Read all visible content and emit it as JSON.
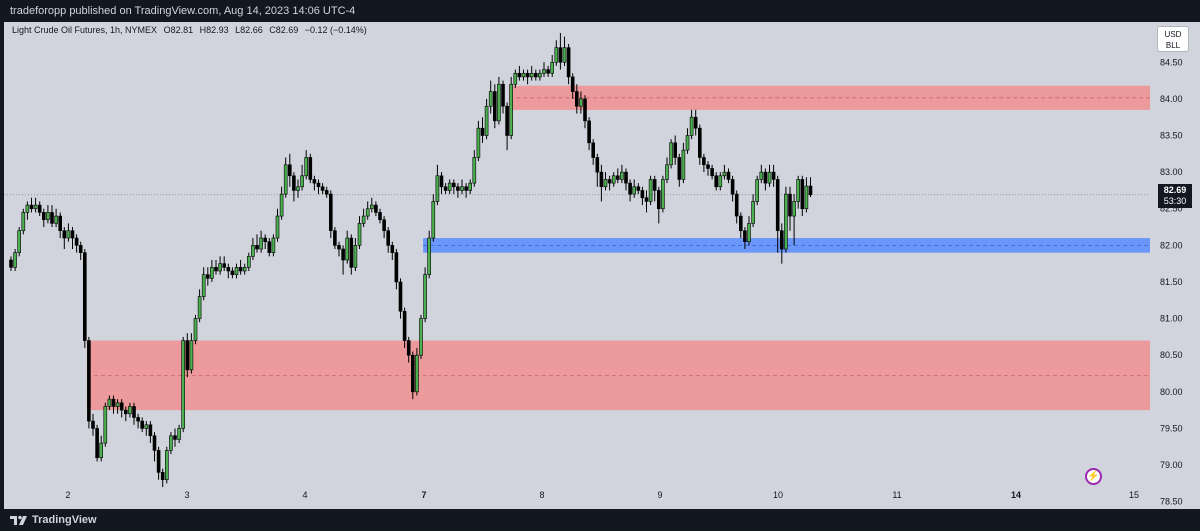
{
  "header": {
    "publisher_line": "tradeforopp published on TradingView.com, Aug 14, 2023 14:06 UTC-4"
  },
  "legend": {
    "symbol": "Light Crude Oil Futures, 1h, NYMEX",
    "open": "O82.81",
    "high": "H82.93",
    "low": "L82.66",
    "close": "C82.69",
    "change": "−0.12 (−0.14%)"
  },
  "currency": {
    "line1": "USD",
    "line2": "BLL"
  },
  "last_price": {
    "price": "82.69",
    "countdown": "53:30"
  },
  "footer": {
    "brand": "TradingView"
  },
  "colors": {
    "background": "#d1d4dc",
    "up_candle": "#4caf50",
    "down_candle": "#000000",
    "supply_zone": "#f28b8b",
    "demand_zone": "#5b8cff",
    "chrome": "#131722"
  },
  "icons": [
    "tradingview-logo-icon",
    "lightning-bolt-icon"
  ],
  "chart_data": {
    "type": "candlestick",
    "y_ticks": [
      "84.50",
      "84.00",
      "83.50",
      "83.00",
      "82.50",
      "82.00",
      "81.50",
      "81.00",
      "80.50",
      "80.00",
      "79.50",
      "79.00",
      "78.50"
    ],
    "ylim": [
      78.4,
      85.05
    ],
    "x_ticks": [
      {
        "label": "2",
        "bold": false
      },
      {
        "label": "3",
        "bold": false
      },
      {
        "label": "4",
        "bold": false
      },
      {
        "label": "7",
        "bold": true
      },
      {
        "label": "8",
        "bold": false
      },
      {
        "label": "9",
        "bold": false
      },
      {
        "label": "10",
        "bold": false
      },
      {
        "label": "11",
        "bold": false
      },
      {
        "label": "14",
        "bold": true
      },
      {
        "label": "15",
        "bold": false
      }
    ],
    "zones": [
      {
        "name": "supply-zone-upper",
        "from_candle": 122,
        "y_low": 83.85,
        "y_high": 84.18,
        "color": "#f28b8b"
      },
      {
        "name": "demand-zone",
        "from_candle": 101,
        "y_low": 81.9,
        "y_high": 82.1,
        "color": "#5b8cff"
      },
      {
        "name": "supply-zone-lower",
        "from_candle": 19,
        "y_low": 79.75,
        "y_high": 80.7,
        "color": "#f28b8b"
      }
    ],
    "candles": [
      [
        81.8,
        81.7,
        81.85,
        81.65
      ],
      [
        81.7,
        81.9,
        81.95,
        81.65
      ],
      [
        81.9,
        82.2,
        82.25,
        81.85
      ],
      [
        82.2,
        82.45,
        82.5,
        82.15
      ],
      [
        82.45,
        82.55,
        82.6,
        82.35
      ],
      [
        82.55,
        82.5,
        82.65,
        82.45
      ],
      [
        82.5,
        82.55,
        82.65,
        82.45
      ],
      [
        82.55,
        82.45,
        82.6,
        82.4
      ],
      [
        82.45,
        82.35,
        82.5,
        82.25
      ],
      [
        82.35,
        82.45,
        82.55,
        82.3
      ],
      [
        82.45,
        82.3,
        82.55,
        82.25
      ],
      [
        82.3,
        82.4,
        82.5,
        82.25
      ],
      [
        82.4,
        82.2,
        82.45,
        82.1
      ],
      [
        82.2,
        82.1,
        82.25,
        81.95
      ],
      [
        82.1,
        82.2,
        82.3,
        82.05
      ],
      [
        82.2,
        82.1,
        82.25,
        81.95
      ],
      [
        82.1,
        82.0,
        82.15,
        81.9
      ],
      [
        82.0,
        81.9,
        82.05,
        81.8
      ],
      [
        81.9,
        80.7,
        81.95,
        80.6
      ],
      [
        80.7,
        79.6,
        80.75,
        79.5
      ],
      [
        79.6,
        79.5,
        79.7,
        79.4
      ],
      [
        79.5,
        79.1,
        79.55,
        79.05
      ],
      [
        79.1,
        79.3,
        79.4,
        79.05
      ],
      [
        79.3,
        79.8,
        79.85,
        79.25
      ],
      [
        79.8,
        79.9,
        79.95,
        79.75
      ],
      [
        79.9,
        79.8,
        79.95,
        79.7
      ],
      [
        79.8,
        79.85,
        79.9,
        79.7
      ],
      [
        79.85,
        79.75,
        79.9,
        79.65
      ],
      [
        79.75,
        79.7,
        79.8,
        79.6
      ],
      [
        79.7,
        79.8,
        79.85,
        79.65
      ],
      [
        79.8,
        79.65,
        79.85,
        79.55
      ],
      [
        79.65,
        79.6,
        79.7,
        79.5
      ],
      [
        79.6,
        79.5,
        79.65,
        79.45
      ],
      [
        79.5,
        79.55,
        79.6,
        79.4
      ],
      [
        79.55,
        79.4,
        79.6,
        79.3
      ],
      [
        79.4,
        79.2,
        79.45,
        79.05
      ],
      [
        79.2,
        78.9,
        79.25,
        78.8
      ],
      [
        78.9,
        78.8,
        78.95,
        78.7
      ],
      [
        78.8,
        79.2,
        79.25,
        78.75
      ],
      [
        79.2,
        79.4,
        79.45,
        79.15
      ],
      [
        79.4,
        79.35,
        79.5,
        79.25
      ],
      [
        79.35,
        79.5,
        79.55,
        79.3
      ],
      [
        79.5,
        80.7,
        80.75,
        79.45
      ],
      [
        80.7,
        80.3,
        80.8,
        80.2
      ],
      [
        80.3,
        80.7,
        80.8,
        80.25
      ],
      [
        80.7,
        81.0,
        81.05,
        80.65
      ],
      [
        81.0,
        81.3,
        81.4,
        80.95
      ],
      [
        81.3,
        81.6,
        81.7,
        81.25
      ],
      [
        81.6,
        81.55,
        81.7,
        81.45
      ],
      [
        81.55,
        81.7,
        81.8,
        81.5
      ],
      [
        81.7,
        81.65,
        81.8,
        81.6
      ],
      [
        81.65,
        81.75,
        81.85,
        81.6
      ],
      [
        81.75,
        81.7,
        81.85,
        81.65
      ],
      [
        81.7,
        81.65,
        81.75,
        81.55
      ],
      [
        81.65,
        81.6,
        81.7,
        81.55
      ],
      [
        81.6,
        81.7,
        81.75,
        81.55
      ],
      [
        81.7,
        81.65,
        81.8,
        81.6
      ],
      [
        81.65,
        81.7,
        81.75,
        81.6
      ],
      [
        81.7,
        81.85,
        81.9,
        81.65
      ],
      [
        81.85,
        82.0,
        82.1,
        81.8
      ],
      [
        82.0,
        81.95,
        82.15,
        81.9
      ],
      [
        81.95,
        82.1,
        82.2,
        81.9
      ],
      [
        82.1,
        82.05,
        82.15,
        81.95
      ],
      [
        82.05,
        81.9,
        82.1,
        81.85
      ],
      [
        81.9,
        82.1,
        82.15,
        81.85
      ],
      [
        82.1,
        82.4,
        82.5,
        82.05
      ],
      [
        82.4,
        82.7,
        82.8,
        82.35
      ],
      [
        82.7,
        83.1,
        83.2,
        82.65
      ],
      [
        83.1,
        82.95,
        83.25,
        82.8
      ],
      [
        82.95,
        82.75,
        83.0,
        82.6
      ],
      [
        82.75,
        82.8,
        82.9,
        82.65
      ],
      [
        82.8,
        82.95,
        83.1,
        82.75
      ],
      [
        82.95,
        83.2,
        83.3,
        82.9
      ],
      [
        83.2,
        82.9,
        83.25,
        82.85
      ],
      [
        82.9,
        82.85,
        82.95,
        82.75
      ],
      [
        82.85,
        82.8,
        82.9,
        82.7
      ],
      [
        82.8,
        82.75,
        82.85,
        82.7
      ],
      [
        82.75,
        82.7,
        82.8,
        82.65
      ],
      [
        82.7,
        82.2,
        82.75,
        82.1
      ],
      [
        82.2,
        82.0,
        82.25,
        81.95
      ],
      [
        82.0,
        81.95,
        82.05,
        81.85
      ],
      [
        81.95,
        81.8,
        82.0,
        81.6
      ],
      [
        81.8,
        82.1,
        82.2,
        81.75
      ],
      [
        82.1,
        81.7,
        82.15,
        81.6
      ],
      [
        81.7,
        82.0,
        82.1,
        81.65
      ],
      [
        82.0,
        82.3,
        82.4,
        81.95
      ],
      [
        82.3,
        82.4,
        82.5,
        82.25
      ],
      [
        82.4,
        82.5,
        82.6,
        82.35
      ],
      [
        82.5,
        82.55,
        82.65,
        82.45
      ],
      [
        82.55,
        82.45,
        82.6,
        82.4
      ],
      [
        82.45,
        82.35,
        82.5,
        82.3
      ],
      [
        82.35,
        82.2,
        82.4,
        82.1
      ],
      [
        82.2,
        82.0,
        82.25,
        81.9
      ],
      [
        82.0,
        81.9,
        82.05,
        81.8
      ],
      [
        81.9,
        81.5,
        81.95,
        81.4
      ],
      [
        81.5,
        81.1,
        81.55,
        81.0
      ],
      [
        81.1,
        80.7,
        81.15,
        80.6
      ],
      [
        80.7,
        80.5,
        80.75,
        80.4
      ],
      [
        80.5,
        80.0,
        80.55,
        79.9
      ],
      [
        80.0,
        80.5,
        80.6,
        79.95
      ],
      [
        80.5,
        81.0,
        81.05,
        80.45
      ],
      [
        81.0,
        81.6,
        81.7,
        80.95
      ],
      [
        81.6,
        82.1,
        82.2,
        81.55
      ],
      [
        82.1,
        82.6,
        82.7,
        82.05
      ],
      [
        82.6,
        82.95,
        83.1,
        82.55
      ],
      [
        82.95,
        82.8,
        83.0,
        82.7
      ],
      [
        82.8,
        82.75,
        82.85,
        82.7
      ],
      [
        82.75,
        82.85,
        82.9,
        82.7
      ],
      [
        82.85,
        82.8,
        82.9,
        82.7
      ],
      [
        82.8,
        82.75,
        82.85,
        82.65
      ],
      [
        82.75,
        82.8,
        82.9,
        82.7
      ],
      [
        82.8,
        82.75,
        82.85,
        82.65
      ],
      [
        82.75,
        82.85,
        82.9,
        82.7
      ],
      [
        82.85,
        83.2,
        83.3,
        82.8
      ],
      [
        83.2,
        83.6,
        83.7,
        83.15
      ],
      [
        83.6,
        83.5,
        83.75,
        83.4
      ],
      [
        83.5,
        83.9,
        84.0,
        83.45
      ],
      [
        83.9,
        84.1,
        84.25,
        83.8
      ],
      [
        84.1,
        83.7,
        84.2,
        83.6
      ],
      [
        83.7,
        84.2,
        84.3,
        83.65
      ],
      [
        84.2,
        83.9,
        84.25,
        83.8
      ],
      [
        83.9,
        83.5,
        83.95,
        83.3
      ],
      [
        83.5,
        84.2,
        84.3,
        83.45
      ],
      [
        84.2,
        84.35,
        84.4,
        84.15
      ],
      [
        84.35,
        84.3,
        84.45,
        84.25
      ],
      [
        84.3,
        84.35,
        84.4,
        84.25
      ],
      [
        84.35,
        84.3,
        84.4,
        84.2
      ],
      [
        84.3,
        84.35,
        84.45,
        84.25
      ],
      [
        84.35,
        84.3,
        84.4,
        84.25
      ],
      [
        84.3,
        84.35,
        84.4,
        84.25
      ],
      [
        84.35,
        84.4,
        84.5,
        84.3
      ],
      [
        84.4,
        84.35,
        84.45,
        84.3
      ],
      [
        84.35,
        84.5,
        84.6,
        84.3
      ],
      [
        84.5,
        84.7,
        84.8,
        84.45
      ],
      [
        84.7,
        84.5,
        84.9,
        84.4
      ],
      [
        84.5,
        84.7,
        84.85,
        84.45
      ],
      [
        84.7,
        84.3,
        84.75,
        84.2
      ],
      [
        84.3,
        84.1,
        84.35,
        84.0
      ],
      [
        84.1,
        83.9,
        84.2,
        83.8
      ],
      [
        83.9,
        84.0,
        84.1,
        83.8
      ],
      [
        84.0,
        83.7,
        84.05,
        83.6
      ],
      [
        83.7,
        83.4,
        83.75,
        83.3
      ],
      [
        83.4,
        83.2,
        83.45,
        83.1
      ],
      [
        83.2,
        83.0,
        83.25,
        82.8
      ],
      [
        83.0,
        82.8,
        83.1,
        82.6
      ],
      [
        82.8,
        82.9,
        83.0,
        82.75
      ],
      [
        82.9,
        82.85,
        82.95,
        82.75
      ],
      [
        82.85,
        82.95,
        83.0,
        82.8
      ],
      [
        82.95,
        82.9,
        83.05,
        82.85
      ],
      [
        82.9,
        83.0,
        83.1,
        82.85
      ],
      [
        83.0,
        82.85,
        83.05,
        82.75
      ],
      [
        82.85,
        82.7,
        82.9,
        82.6
      ],
      [
        82.7,
        82.8,
        82.9,
        82.65
      ],
      [
        82.8,
        82.75,
        82.85,
        82.7
      ],
      [
        82.75,
        82.65,
        82.8,
        82.55
      ],
      [
        82.65,
        82.6,
        82.75,
        82.45
      ],
      [
        82.6,
        82.9,
        82.95,
        82.55
      ],
      [
        82.9,
        82.75,
        82.95,
        82.6
      ],
      [
        82.75,
        82.5,
        82.8,
        82.3
      ],
      [
        82.5,
        82.9,
        82.95,
        82.45
      ],
      [
        82.9,
        83.1,
        83.2,
        82.85
      ],
      [
        83.1,
        83.4,
        83.45,
        83.05
      ],
      [
        83.4,
        83.2,
        83.5,
        83.1
      ],
      [
        83.2,
        82.9,
        83.25,
        82.8
      ],
      [
        82.9,
        83.3,
        83.4,
        82.85
      ],
      [
        83.3,
        83.5,
        83.6,
        83.25
      ],
      [
        83.5,
        83.75,
        83.85,
        83.45
      ],
      [
        83.75,
        83.6,
        83.85,
        83.5
      ],
      [
        83.6,
        83.2,
        83.65,
        83.1
      ],
      [
        83.2,
        83.1,
        83.25,
        83.0
      ],
      [
        83.1,
        83.05,
        83.15,
        82.95
      ],
      [
        83.05,
        82.95,
        83.1,
        82.9
      ],
      [
        82.95,
        82.8,
        83.0,
        82.75
      ],
      [
        82.8,
        82.95,
        83.0,
        82.75
      ],
      [
        82.95,
        83.0,
        83.1,
        82.9
      ],
      [
        83.0,
        82.9,
        83.05,
        82.85
      ],
      [
        82.9,
        82.7,
        82.95,
        82.6
      ],
      [
        82.7,
        82.4,
        82.75,
        82.3
      ],
      [
        82.4,
        82.2,
        82.45,
        82.1
      ],
      [
        82.2,
        82.05,
        82.25,
        81.95
      ],
      [
        82.05,
        82.3,
        82.4,
        82.0
      ],
      [
        82.3,
        82.6,
        82.7,
        82.25
      ],
      [
        82.6,
        82.9,
        82.95,
        82.55
      ],
      [
        82.9,
        83.0,
        83.1,
        82.85
      ],
      [
        83.0,
        82.85,
        83.05,
        82.75
      ],
      [
        82.85,
        83.0,
        83.1,
        82.8
      ],
      [
        83.0,
        82.9,
        83.1,
        82.8
      ],
      [
        82.9,
        82.2,
        82.95,
        81.9
      ],
      [
        82.2,
        81.95,
        82.3,
        81.75
      ],
      [
        81.95,
        82.7,
        82.8,
        81.9
      ],
      [
        82.7,
        82.4,
        82.8,
        82.2
      ],
      [
        82.4,
        82.6,
        82.7,
        82.0
      ],
      [
        82.6,
        82.9,
        82.95,
        82.5
      ],
      [
        82.9,
        82.5,
        82.95,
        82.4
      ],
      [
        82.5,
        82.81,
        82.93,
        82.45
      ],
      [
        82.81,
        82.69,
        82.93,
        82.66
      ]
    ]
  }
}
